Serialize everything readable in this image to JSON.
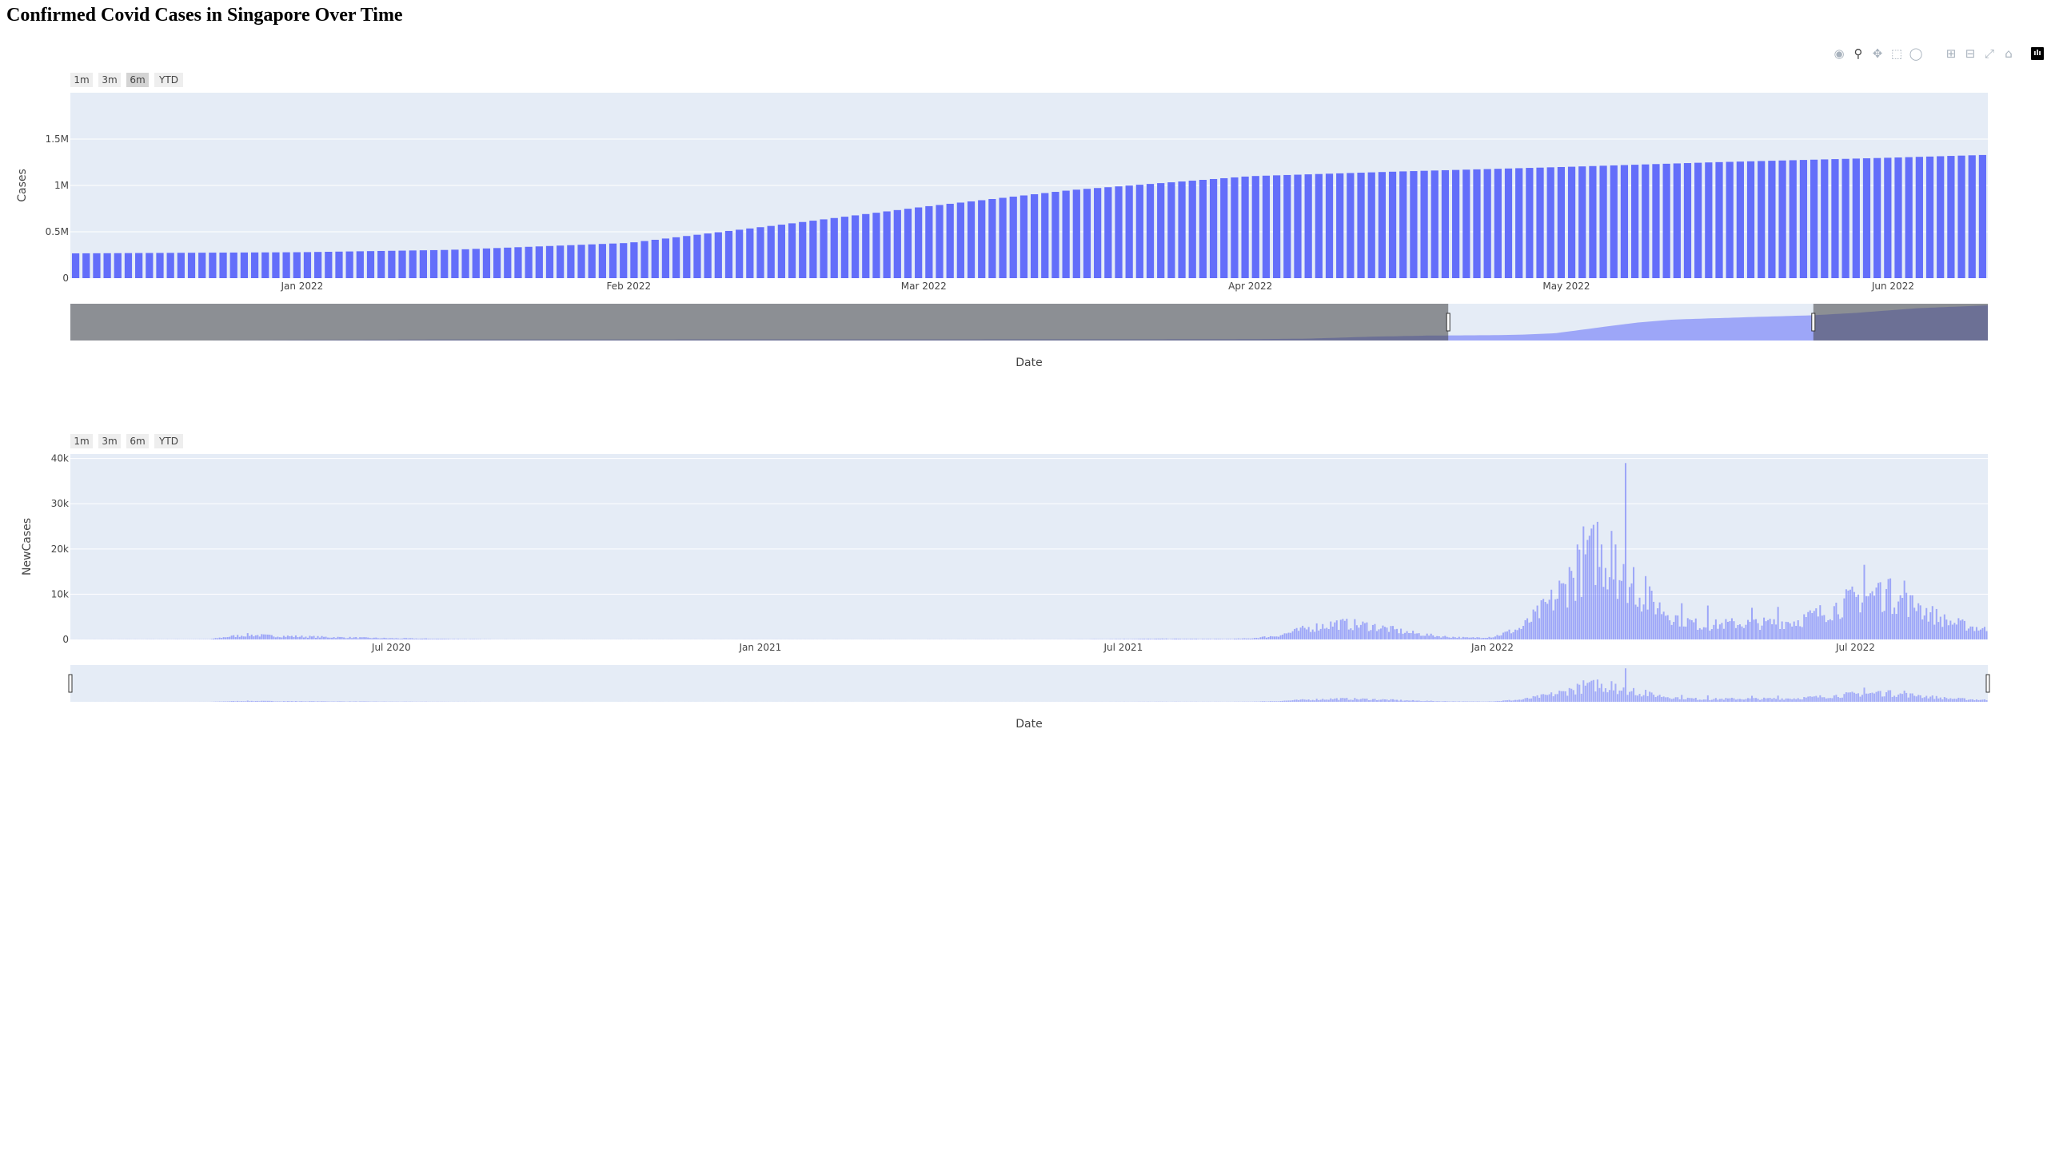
{
  "page": {
    "title": "Confirmed Covid Cases in Singapore Over Time"
  },
  "modebar": {
    "icons": [
      "camera-icon",
      "zoom-icon",
      "pan-icon",
      "box-select-icon",
      "lasso-icon",
      "zoom-in-icon",
      "zoom-out-icon",
      "autoscale-icon",
      "reset-axes-icon",
      "plotly-logo-icon"
    ],
    "logo_text": "ılı"
  },
  "colors": {
    "bar": "#636efa",
    "plot_bg": "#e5ecf6",
    "grid": "#ffffff",
    "selected_button": "#d4d4d4",
    "button": "#eeeeee"
  },
  "chart_data": [
    {
      "type": "bar",
      "ylabel": "Cases",
      "xlabel": "Date",
      "range_selector": [
        "1m",
        "3m",
        "6m",
        "YTD"
      ],
      "active_selector": "6m",
      "x_start": "2021-12-10",
      "x_end": "2022-06-10",
      "ylim": [
        0,
        2000000
      ],
      "y_ticks": [
        {
          "value": 0,
          "label": "0"
        },
        {
          "value": 500000,
          "label": "0.5M"
        },
        {
          "value": 1000000,
          "label": "1M"
        },
        {
          "value": 1500000,
          "label": "1.5M"
        }
      ],
      "x_ticks": [
        {
          "date": "2022-01-01",
          "label": "Jan 2022"
        },
        {
          "date": "2022-02-01",
          "label": "Feb 2022"
        },
        {
          "date": "2022-03-01",
          "label": "Mar 2022"
        },
        {
          "date": "2022-04-01",
          "label": "Apr 2022"
        },
        {
          "date": "2022-05-01",
          "label": "May 2022"
        },
        {
          "date": "2022-06-01",
          "label": "Jun 2022"
        }
      ],
      "cumulative_series": [
        [
          "2020-01-23",
          1
        ],
        [
          "2020-04-01",
          1000
        ],
        [
          "2020-05-01",
          17000
        ],
        [
          "2020-06-01",
          35000
        ],
        [
          "2020-08-01",
          52000
        ],
        [
          "2020-12-31",
          58500
        ],
        [
          "2021-06-30",
          62500
        ],
        [
          "2021-09-01",
          70000
        ],
        [
          "2021-10-01",
          100000
        ],
        [
          "2021-11-01",
          200000
        ],
        [
          "2021-12-01",
          262000
        ],
        [
          "2022-01-01",
          280000
        ],
        [
          "2022-01-15",
          305000
        ],
        [
          "2022-02-01",
          380000
        ],
        [
          "2022-02-15",
          570000
        ],
        [
          "2022-03-01",
          770000
        ],
        [
          "2022-03-15",
          950000
        ],
        [
          "2022-04-01",
          1100000
        ],
        [
          "2022-04-15",
          1150000
        ],
        [
          "2022-05-01",
          1200000
        ],
        [
          "2022-05-15",
          1250000
        ],
        [
          "2022-06-01",
          1300000
        ],
        [
          "2022-06-10",
          1330000
        ],
        [
          "2022-07-01",
          1450000
        ],
        [
          "2022-08-01",
          1700000
        ],
        [
          "2022-09-05",
          1850000
        ]
      ],
      "rangeslider": {
        "data_start": "2020-01-23",
        "data_end": "2022-09-05",
        "window_start": "2021-12-10",
        "window_end": "2022-06-10"
      }
    },
    {
      "type": "bar",
      "ylabel": "NewCases",
      "xlabel": "Date",
      "range_selector": [
        "1m",
        "3m",
        "6m",
        "YTD"
      ],
      "x_start": "2020-01-23",
      "x_end": "2022-09-05",
      "ylim": [
        0,
        41000
      ],
      "y_ticks": [
        {
          "value": 0,
          "label": "0"
        },
        {
          "value": 10000,
          "label": "10k"
        },
        {
          "value": 20000,
          "label": "20k"
        },
        {
          "value": 30000,
          "label": "30k"
        },
        {
          "value": 40000,
          "label": "40k"
        }
      ],
      "x_ticks": [
        {
          "date": "2020-07-01",
          "label": "Jul 2020"
        },
        {
          "date": "2021-01-01",
          "label": "Jan 2021"
        },
        {
          "date": "2021-07-01",
          "label": "Jul 2021"
        },
        {
          "date": "2022-01-01",
          "label": "Jan 2022"
        },
        {
          "date": "2022-07-01",
          "label": "Jul 2022"
        }
      ],
      "daily_profile": [
        [
          "2020-01-23",
          5
        ],
        [
          "2020-04-01",
          50
        ],
        [
          "2020-04-10",
          600
        ],
        [
          "2020-04-20",
          1000
        ],
        [
          "2020-05-01",
          800
        ],
        [
          "2020-06-01",
          500
        ],
        [
          "2020-07-01",
          250
        ],
        [
          "2020-08-01",
          100
        ],
        [
          "2020-08-20",
          30
        ],
        [
          "2020-09-15",
          10
        ],
        [
          "2021-01-01",
          15
        ],
        [
          "2021-06-01",
          20
        ],
        [
          "2021-07-20",
          150
        ],
        [
          "2021-08-20",
          100
        ],
        [
          "2021-09-01",
          200
        ],
        [
          "2021-09-15",
          800
        ],
        [
          "2021-10-01",
          2500
        ],
        [
          "2021-10-15",
          3500
        ],
        [
          "2021-11-01",
          3000
        ],
        [
          "2021-11-20",
          1500
        ],
        [
          "2021-12-05",
          700
        ],
        [
          "2021-12-20",
          350
        ],
        [
          "2022-01-01",
          600
        ],
        [
          "2022-01-15",
          2500
        ],
        [
          "2022-02-01",
          9000
        ],
        [
          "2022-02-10",
          13000
        ],
        [
          "2022-02-20",
          19000
        ],
        [
          "2022-03-01",
          16000
        ],
        [
          "2022-03-15",
          10000
        ],
        [
          "2022-04-01",
          5000
        ],
        [
          "2022-04-15",
          3000
        ],
        [
          "2022-05-01",
          3500
        ],
        [
          "2022-05-15",
          3500
        ],
        [
          "2022-06-01",
          4000
        ],
        [
          "2022-06-15",
          6000
        ],
        [
          "2022-07-01",
          9000
        ],
        [
          "2022-07-15",
          10000
        ],
        [
          "2022-08-01",
          7000
        ],
        [
          "2022-08-15",
          4000
        ],
        [
          "2022-09-05",
          2000
        ]
      ],
      "peaks": [
        [
          "2022-01-30",
          11000
        ],
        [
          "2022-02-03",
          13000
        ],
        [
          "2022-02-08",
          16000
        ],
        [
          "2022-02-12",
          21000
        ],
        [
          "2022-02-15",
          25000
        ],
        [
          "2022-02-17",
          22000
        ],
        [
          "2022-02-22",
          26000
        ],
        [
          "2022-02-24",
          21000
        ],
        [
          "2022-03-01",
          24000
        ],
        [
          "2022-03-03",
          21000
        ],
        [
          "2022-03-08",
          39000
        ],
        [
          "2022-03-12",
          16000
        ],
        [
          "2022-03-18",
          14000
        ],
        [
          "2022-04-05",
          8000
        ],
        [
          "2022-04-18",
          7500
        ],
        [
          "2022-05-10",
          7000
        ],
        [
          "2022-05-23",
          7200
        ],
        [
          "2022-06-28",
          11000
        ],
        [
          "2022-07-05",
          16500
        ],
        [
          "2022-07-12",
          12500
        ],
        [
          "2022-07-18",
          13500
        ],
        [
          "2022-07-25",
          13000
        ],
        [
          "2022-08-01",
          8000
        ]
      ],
      "rangeslider": {
        "data_start": "2020-01-23",
        "data_end": "2022-09-05",
        "window_start": "2020-01-23",
        "window_end": "2022-09-05"
      }
    }
  ]
}
